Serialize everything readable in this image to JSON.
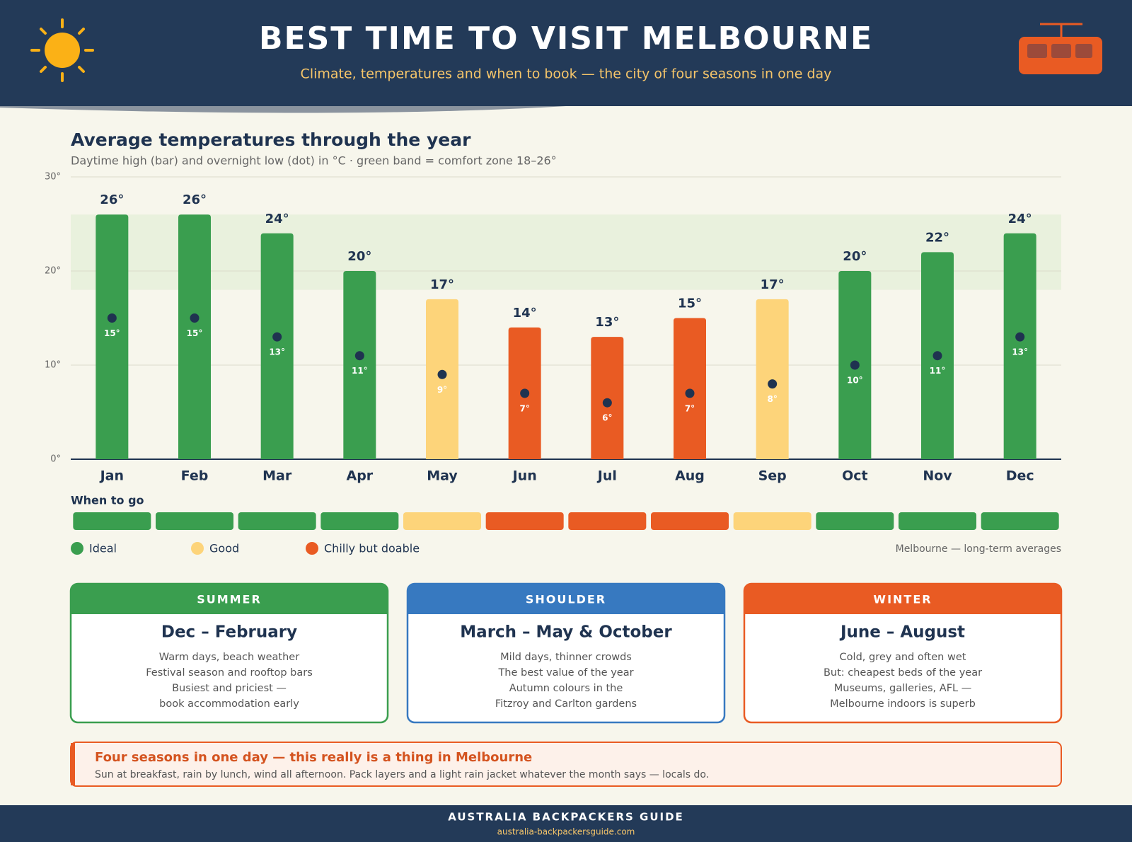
{
  "header": {
    "title": "BEST TIME TO VISIT MELBOURNE",
    "subtitle": "Climate, temperatures and when to book — the city of four seasons in one day"
  },
  "chart_data": {
    "type": "bar",
    "title": "Average temperatures through the year",
    "subtitle": "Daytime high (bar) and overnight low (dot) in °C · green band = comfort zone 18–26°",
    "categories": [
      "Jan",
      "Feb",
      "Mar",
      "Apr",
      "May",
      "Jun",
      "Jul",
      "Aug",
      "Sep",
      "Oct",
      "Nov",
      "Dec"
    ],
    "series": [
      {
        "values": [
          26,
          26,
          24,
          20,
          17,
          14,
          13,
          15,
          17,
          20,
          22,
          24
        ],
        "value_labels": [
          "26°",
          "26°",
          "24°",
          "20°",
          "17°",
          "14°",
          "13°",
          "15°",
          "17°",
          "20°",
          "22°",
          "24°"
        ]
      },
      {
        "values": [
          15,
          15,
          13,
          11,
          9,
          7,
          6,
          7,
          8,
          10,
          11,
          13
        ],
        "value_labels": [
          "15°",
          "15°",
          "13°",
          "11°",
          "9°",
          "7°",
          "6°",
          "7°",
          "8°",
          "10°",
          "11°",
          "13°"
        ],
        "color": "#1f3350"
      }
    ],
    "ratings": [
      0,
      0,
      0,
      0,
      1,
      2,
      2,
      2,
      1,
      0,
      0,
      0
    ],
    "legend": [
      {
        "label": "Ideal",
        "color": "#3a9e4f"
      },
      {
        "label": "Good",
        "color": "#fdd47a"
      },
      {
        "label": "Chilly but doable",
        "color": "#e95b23"
      }
    ],
    "comfort_band": [
      18,
      26
    ],
    "ylim": [
      0,
      30
    ],
    "yticks": [
      {
        "value": 0,
        "label": "0°"
      },
      {
        "value": 10,
        "label": "10°"
      },
      {
        "value": 20,
        "label": "20°"
      },
      {
        "value": 30,
        "label": "30°"
      }
    ],
    "grid": true,
    "when_label": "When to go",
    "note": "Melbourne — long-term averages"
  },
  "seasons": [
    {
      "label": "SUMMER",
      "title": "Dec – February",
      "lines": [
        "Warm days, beach weather",
        "Festival season and rooftop bars",
        "Busiest and priciest —",
        "book accommodation early"
      ]
    },
    {
      "label": "SHOULDER",
      "title": "March – May & October",
      "lines": [
        "Mild days, thinner crowds",
        "The best value of the year",
        "Autumn colours in the",
        "Fitzroy and Carlton gardens"
      ]
    },
    {
      "label": "WINTER",
      "title": "June – August",
      "lines": [
        "Cold, grey and often wet",
        "But: cheapest beds of the year",
        "Museums, galleries, AFL —",
        "Melbourne indoors is superb"
      ]
    }
  ],
  "callout": {
    "title": "Four seasons in one day — this really is a thing in Melbourne",
    "text": "Sun at breakfast, rain by lunch, wind all afternoon. Pack layers and a light rain jacket whatever the month says — locals do."
  },
  "footer": {
    "name": "AUSTRALIA BACKPACKERS GUIDE",
    "url": "australia-backpackersguide.com"
  }
}
